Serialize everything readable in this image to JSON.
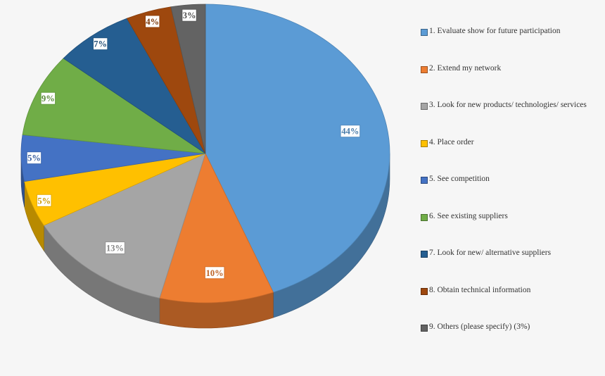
{
  "chart_data": {
    "type": "pie",
    "title": "",
    "categories": [
      "1. Evaluate show for future participation",
      "2. Extend my network",
      "3. Look for new products/ technologies/ services",
      "4. Place order",
      "5. See competition",
      "6. See existing suppliers",
      "7. Look for new/ alternative suppliers",
      "8. Obtain technical information",
      "9. Others (please specify) (3%)"
    ],
    "values": [
      44,
      10,
      13,
      5,
      5,
      9,
      7,
      4,
      3
    ],
    "labels": [
      "44%",
      "10%",
      "13%",
      "5%",
      "5%",
      "9%",
      "7%",
      "4%",
      "3%"
    ],
    "colors": [
      "#5b9bd5",
      "#ed7d31",
      "#a5a5a5",
      "#ffc000",
      "#4472c4",
      "#70ad47",
      "#255e91",
      "#9e480e",
      "#636363"
    ],
    "start": "12 o'clock",
    "direction": "clockwise",
    "style": "3D tilted",
    "legend": "right"
  }
}
